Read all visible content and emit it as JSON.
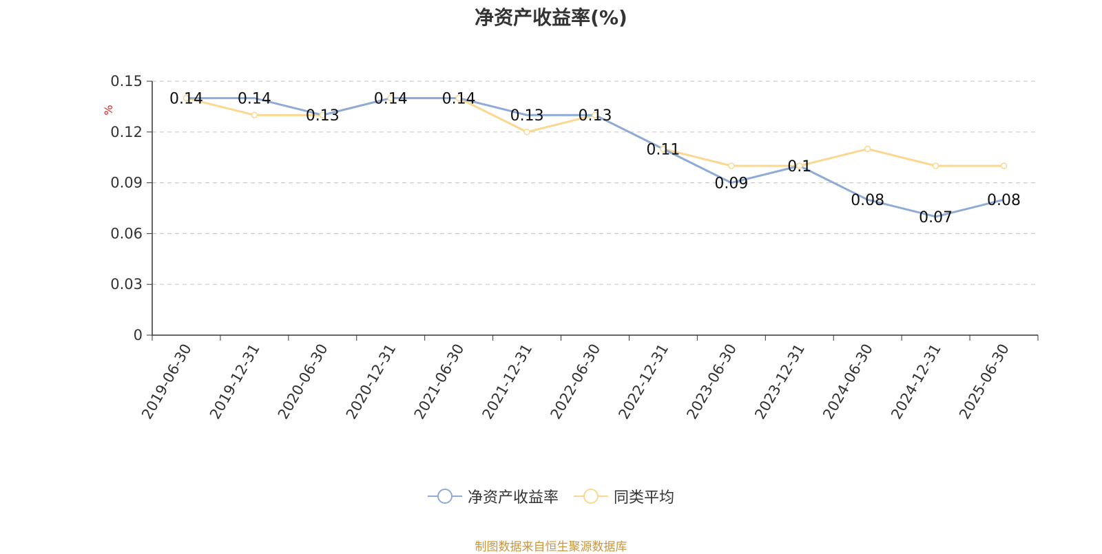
{
  "title": "净资产收益率(%)",
  "source": "制图数据来自恒生聚源数据库",
  "colors": {
    "series1": "#8eaad6",
    "series2": "#fad88f",
    "grid": "#cccccc",
    "axis": "#333333",
    "unit": "#e02020",
    "source": "#c9963e"
  },
  "chart_data": {
    "type": "line",
    "title": "净资产收益率(%)",
    "ylabel": "%",
    "ylim": [
      0,
      0.15
    ],
    "yticks": [
      "0",
      "0.03",
      "0.06",
      "0.09",
      "0.12",
      "0.15"
    ],
    "grid": true,
    "legend_position": "bottom",
    "categories": [
      "2019-06-30",
      "2019-12-31",
      "2020-06-30",
      "2020-12-31",
      "2021-06-30",
      "2021-12-31",
      "2022-06-30",
      "2022-12-31",
      "2023-06-30",
      "2023-12-31",
      "2024-06-30",
      "2024-12-31",
      "2025-06-30"
    ],
    "series": [
      {
        "name": "净资产收益率",
        "values": [
          0.14,
          0.14,
          0.13,
          0.14,
          0.14,
          0.13,
          0.13,
          0.11,
          0.09,
          0.1,
          0.08,
          0.07,
          0.08
        ],
        "labels": [
          "0.14",
          "0.14",
          "0.13",
          "0.14",
          "0.14",
          "0.13",
          "0.13",
          "0.11",
          "0.09",
          "0.1",
          "0.08",
          "0.07",
          "0.08"
        ]
      },
      {
        "name": "同类平均",
        "values": [
          0.14,
          0.13,
          0.13,
          0.14,
          0.14,
          0.12,
          0.13,
          0.11,
          0.1,
          0.1,
          0.11,
          0.1,
          0.1
        ]
      }
    ]
  }
}
